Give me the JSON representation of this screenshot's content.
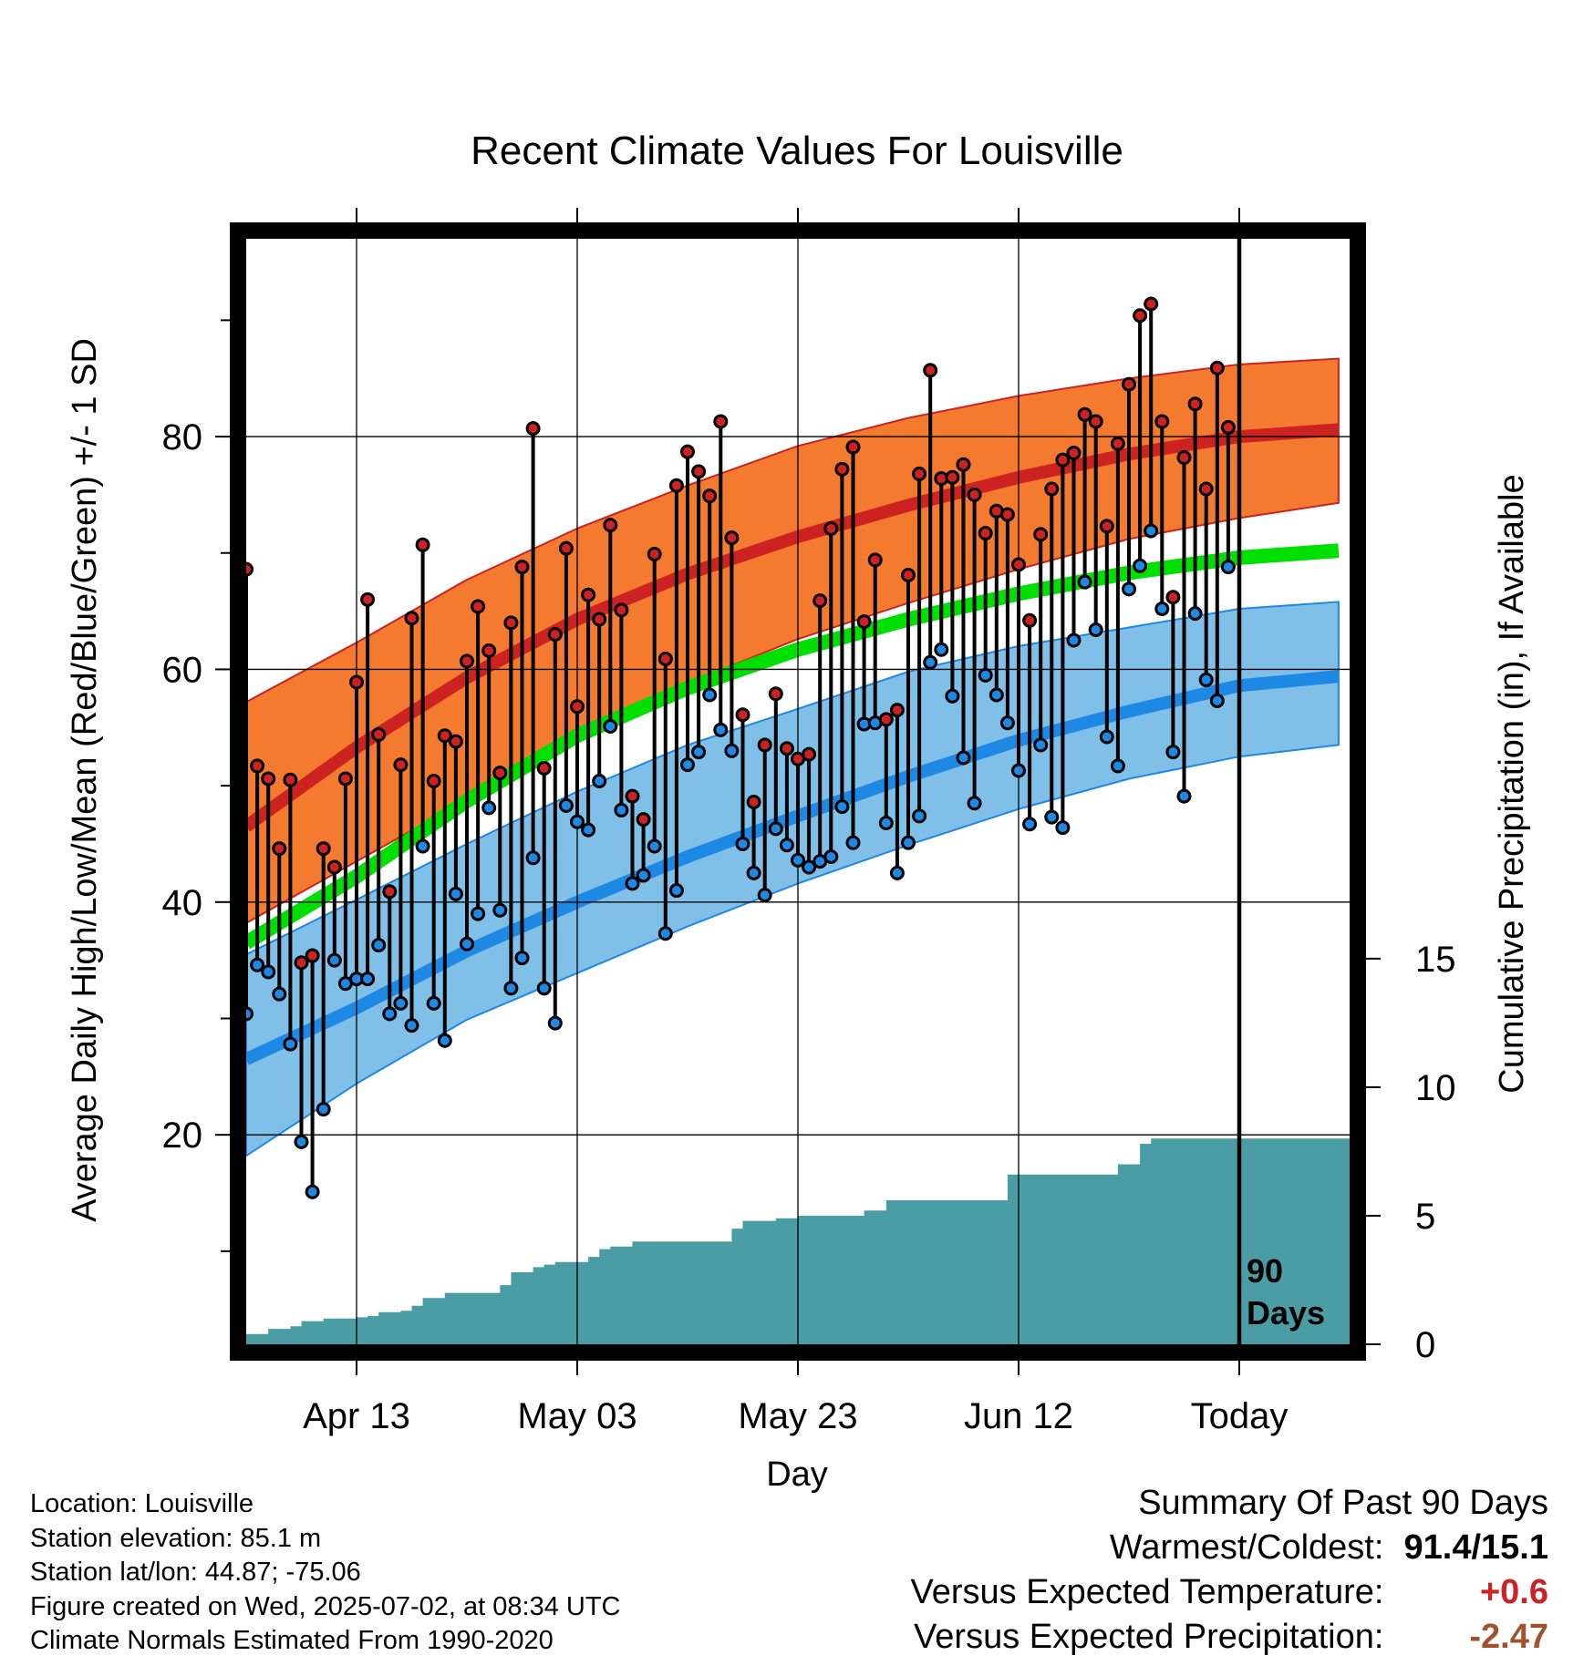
{
  "chart_data": {
    "type": "line",
    "title": "Recent Climate Values For Louisville",
    "xlabel": "Day",
    "ylabel": "Average Daily High/Low/Mean (Red/Blue/Green) +/- 1 SD",
    "y2label": "Cumulative Precipitation (in), If Available",
    "ylim": [
      2,
      97
    ],
    "y2lim": [
      0,
      43
    ],
    "xlim": [
      0,
      100
    ],
    "x_ticks": [
      {
        "x": 10,
        "label": "Apr 13"
      },
      {
        "x": 30,
        "label": "May 03"
      },
      {
        "x": 50,
        "label": "May 23"
      },
      {
        "x": 70,
        "label": "Jun 12"
      },
      {
        "x": 90,
        "label": "Today"
      }
    ],
    "y_ticks": [
      20,
      40,
      60,
      80
    ],
    "y2_ticks": [
      0,
      5,
      10,
      15
    ],
    "today_label": [
      "90",
      "Days"
    ],
    "colors": {
      "high_band": "#f47a30",
      "high_line": "#cc2222",
      "low_band": "#80c0e8",
      "low_line": "#1e88e5",
      "mean_line": "#00e000",
      "precip": "#4a9ca5",
      "obs_high_dot": "#cc2222",
      "obs_low_dot": "#1e88e5",
      "warm_value": "#cc2222",
      "precip_value": "#a0522d"
    },
    "normals": {
      "x": [
        0,
        10,
        20,
        30,
        40,
        50,
        60,
        70,
        80,
        90,
        99
      ],
      "high_mean": [
        46.5,
        53.3,
        59.3,
        64.3,
        68.2,
        71.4,
        74.1,
        76.5,
        78.5,
        80.0,
        80.6
      ],
      "high_upper": [
        57.2,
        62.3,
        67.7,
        72.1,
        75.8,
        79.2,
        81.6,
        83.5,
        85.0,
        86.2,
        86.7
      ],
      "high_lower": [
        38.2,
        43.5,
        48.8,
        54.3,
        58.8,
        62.6,
        65.7,
        68.6,
        71.2,
        73.0,
        74.3
      ],
      "mean": [
        36.5,
        42.2,
        48.7,
        54.3,
        58.4,
        61.7,
        64.3,
        66.5,
        68.3,
        69.6,
        70.2
      ],
      "low_mean": [
        26.5,
        30.9,
        35.8,
        40.0,
        43.9,
        47.4,
        50.8,
        53.9,
        56.4,
        58.6,
        59.4
      ],
      "low_upper": [
        35.5,
        40.2,
        45.0,
        49.5,
        53.5,
        56.6,
        59.8,
        62.0,
        63.6,
        65.2,
        65.8
      ],
      "low_lower": [
        18.2,
        24.4,
        29.9,
        33.9,
        37.9,
        41.6,
        44.9,
        48.0,
        50.6,
        52.5,
        53.5
      ]
    },
    "series": [
      {
        "name": "High",
        "x": [
          0,
          1,
          2,
          3,
          4,
          5,
          6,
          7,
          8,
          9,
          10,
          11,
          12,
          13,
          14,
          15,
          16,
          17,
          18,
          19,
          20,
          21,
          22,
          23,
          24,
          25,
          26,
          27,
          28,
          29,
          30,
          31,
          32,
          33,
          34,
          35,
          36,
          37,
          38,
          39,
          40,
          41,
          42,
          43,
          44,
          45,
          46,
          47,
          48,
          49,
          50,
          51,
          52,
          53,
          54,
          55,
          56,
          57,
          58,
          59,
          60,
          61,
          62,
          63,
          64,
          65,
          66,
          67,
          68,
          69,
          70,
          71,
          72,
          73,
          74,
          75,
          76,
          77,
          78,
          79,
          80,
          81,
          82,
          83,
          84,
          85,
          86,
          87,
          88,
          89,
          90
        ],
        "values": [
          68.6,
          51.7,
          50.6,
          44.6,
          50.5,
          34.8,
          35.4,
          44.6,
          43.0,
          50.6,
          58.9,
          66.0,
          54.4,
          40.9,
          51.8,
          64.4,
          70.7,
          50.4,
          54.3,
          53.8,
          60.7,
          65.4,
          61.6,
          51.1,
          64.0,
          68.8,
          80.7,
          51.5,
          63.0,
          70.4,
          56.8,
          66.4,
          64.3,
          72.4,
          65.1,
          49.1,
          47.1,
          69.9,
          60.9,
          75.8,
          78.7,
          77.0,
          74.9,
          81.3,
          71.3,
          56.1,
          48.6,
          53.5,
          57.9,
          53.2,
          52.3,
          52.7,
          65.9,
          72.1,
          77.2,
          79.1,
          64.1,
          69.4,
          55.7,
          56.5,
          68.1,
          76.8,
          85.7,
          76.4,
          76.5,
          77.6,
          75.0,
          71.7,
          73.6,
          73.3,
          69.0,
          64.2,
          71.6,
          75.5,
          78.0,
          78.6,
          81.9,
          81.3,
          72.3,
          79.4,
          84.5,
          90.4,
          91.4,
          81.3,
          66.2,
          78.2,
          82.8,
          75.5,
          85.9,
          80.8,
          null
        ]
      },
      {
        "name": "Low",
        "x": [
          0,
          1,
          2,
          3,
          4,
          5,
          6,
          7,
          8,
          9,
          10,
          11,
          12,
          13,
          14,
          15,
          16,
          17,
          18,
          19,
          20,
          21,
          22,
          23,
          24,
          25,
          26,
          27,
          28,
          29,
          30,
          31,
          32,
          33,
          34,
          35,
          36,
          37,
          38,
          39,
          40,
          41,
          42,
          43,
          44,
          45,
          46,
          47,
          48,
          49,
          50,
          51,
          52,
          53,
          54,
          55,
          56,
          57,
          58,
          59,
          60,
          61,
          62,
          63,
          64,
          65,
          66,
          67,
          68,
          69,
          70,
          71,
          72,
          73,
          74,
          75,
          76,
          77,
          78,
          79,
          80,
          81,
          82,
          83,
          84,
          85,
          86,
          87,
          88,
          89,
          90
        ],
        "values": [
          30.4,
          34.6,
          34.0,
          32.1,
          27.8,
          19.4,
          15.1,
          22.2,
          35.0,
          33.0,
          33.4,
          33.4,
          36.3,
          30.4,
          31.3,
          29.4,
          44.8,
          31.3,
          28.1,
          40.7,
          36.4,
          39.0,
          48.1,
          39.3,
          32.6,
          35.2,
          43.8,
          32.6,
          29.6,
          48.3,
          46.9,
          46.2,
          50.4,
          55.1,
          47.9,
          41.6,
          42.3,
          44.8,
          37.3,
          41.0,
          51.8,
          52.9,
          57.8,
          54.8,
          53.0,
          45.0,
          42.5,
          40.6,
          46.3,
          44.9,
          43.6,
          43.0,
          43.5,
          43.9,
          48.2,
          45.1,
          55.3,
          55.4,
          46.8,
          42.5,
          45.1,
          47.4,
          60.6,
          61.7,
          57.7,
          52.4,
          48.5,
          59.5,
          57.8,
          55.4,
          51.3,
          46.7,
          53.5,
          47.3,
          46.4,
          62.5,
          67.5,
          63.4,
          54.2,
          51.7,
          66.9,
          68.9,
          71.9,
          65.2,
          52.9,
          49.1,
          64.8,
          59.1,
          57.3,
          68.8,
          null
        ]
      }
    ],
    "precip": {
      "x": [
        0,
        1,
        2,
        3,
        4,
        5,
        6,
        7,
        8,
        9,
        10,
        11,
        12,
        13,
        14,
        15,
        16,
        17,
        18,
        19,
        20,
        21,
        22,
        23,
        24,
        25,
        26,
        27,
        28,
        29,
        30,
        31,
        32,
        33,
        34,
        35,
        36,
        37,
        38,
        39,
        40,
        41,
        42,
        43,
        44,
        45,
        46,
        47,
        48,
        49,
        50,
        51,
        52,
        53,
        54,
        55,
        56,
        57,
        58,
        59,
        60,
        61,
        62,
        63,
        64,
        65,
        66,
        67,
        68,
        69,
        70,
        71,
        72,
        73,
        74,
        75,
        76,
        77,
        78,
        79,
        80,
        81,
        82,
        83,
        84,
        85,
        86,
        87,
        88,
        89,
        90,
        91,
        92,
        93,
        94,
        95,
        96,
        97,
        98,
        99
      ],
      "values": [
        0.4,
        0.4,
        0.6,
        0.6,
        0.7,
        0.9,
        0.9,
        1.0,
        1.0,
        1.0,
        1.05,
        1.1,
        1.25,
        1.25,
        1.3,
        1.5,
        1.8,
        1.8,
        2.0,
        2.0,
        2.0,
        2.0,
        2.0,
        2.3,
        2.8,
        2.8,
        3.0,
        3.1,
        3.2,
        3.2,
        3.2,
        3.4,
        3.7,
        3.8,
        3.8,
        4.0,
        4.0,
        4.0,
        4.0,
        4.0,
        4.0,
        4.0,
        4.0,
        4.0,
        4.5,
        4.8,
        4.8,
        4.8,
        4.9,
        4.9,
        5.0,
        5.0,
        5.0,
        5.0,
        5.0,
        5.0,
        5.2,
        5.2,
        5.6,
        5.6,
        5.6,
        5.6,
        5.6,
        5.6,
        5.6,
        5.6,
        5.6,
        5.6,
        5.6,
        6.6,
        6.6,
        6.6,
        6.6,
        6.6,
        6.6,
        6.6,
        6.6,
        6.6,
        6.6,
        7.0,
        7.0,
        7.8,
        8.0,
        8.0,
        8.0,
        8.0,
        8.0,
        8.0,
        8.0,
        8.0,
        8.0,
        8.0,
        8.0,
        8.0,
        8.0,
        8.0,
        8.0,
        8.0,
        8.0,
        8.0
      ]
    }
  },
  "footer": {
    "location": "Location: Louisville",
    "elevation": "Station elevation: 85.1 m",
    "latlon": "Station lat/lon: 44.87; -75.06",
    "created": "Figure created on Wed, 2025-07-02, at 08:34 UTC",
    "normals": "Climate Normals Estimated From 1990-2020"
  },
  "summary": {
    "heading": "Summary Of Past 90 Days",
    "warmest_label": "Warmest/Coldest:",
    "warmest_value": "91.4/15.1",
    "temp_label": "Versus Expected Temperature:",
    "temp_value": "+0.6",
    "precip_label": "Versus Expected Precipitation:",
    "precip_value": "-2.47"
  }
}
